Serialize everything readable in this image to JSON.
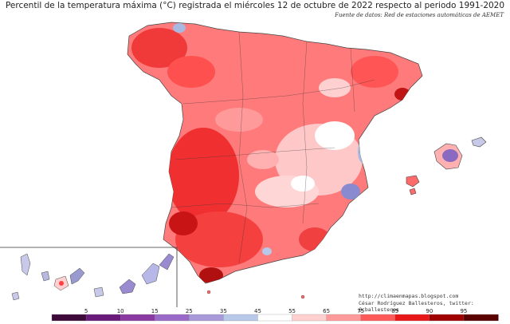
{
  "map": {
    "title": "Percentil de la temperatura máxima (°C) registrada el miércoles 12 de octubre de 2022 respecto al periodo 1991-2020",
    "source": "Fuente de datos: Red de estaciones automáticas de AEMET",
    "regions": [
      "peninsula",
      "balearic-islands",
      "ceuta",
      "melilla",
      "canary-islands"
    ],
    "insets": [
      "canary-islands-inset"
    ]
  },
  "legend": {
    "ticks": [
      "5",
      "10",
      "15",
      "25",
      "35",
      "45",
      "55",
      "65",
      "75",
      "85",
      "90",
      "95"
    ],
    "colors": [
      "#3d0a3a",
      "#6a1a7a",
      "#8a3aa0",
      "#9a6ac8",
      "#a89ad8",
      "#b8c8e8",
      "#ffffff",
      "#ffd0d0",
      "#ff9a9a",
      "#ff5a5a",
      "#e81818",
      "#a00000",
      "#5a0000"
    ]
  },
  "credits": {
    "url": "http://climaenmapas.blogspot.com",
    "author": "César Rodríguez Ballesteros, twitter: @cballesteros"
  }
}
